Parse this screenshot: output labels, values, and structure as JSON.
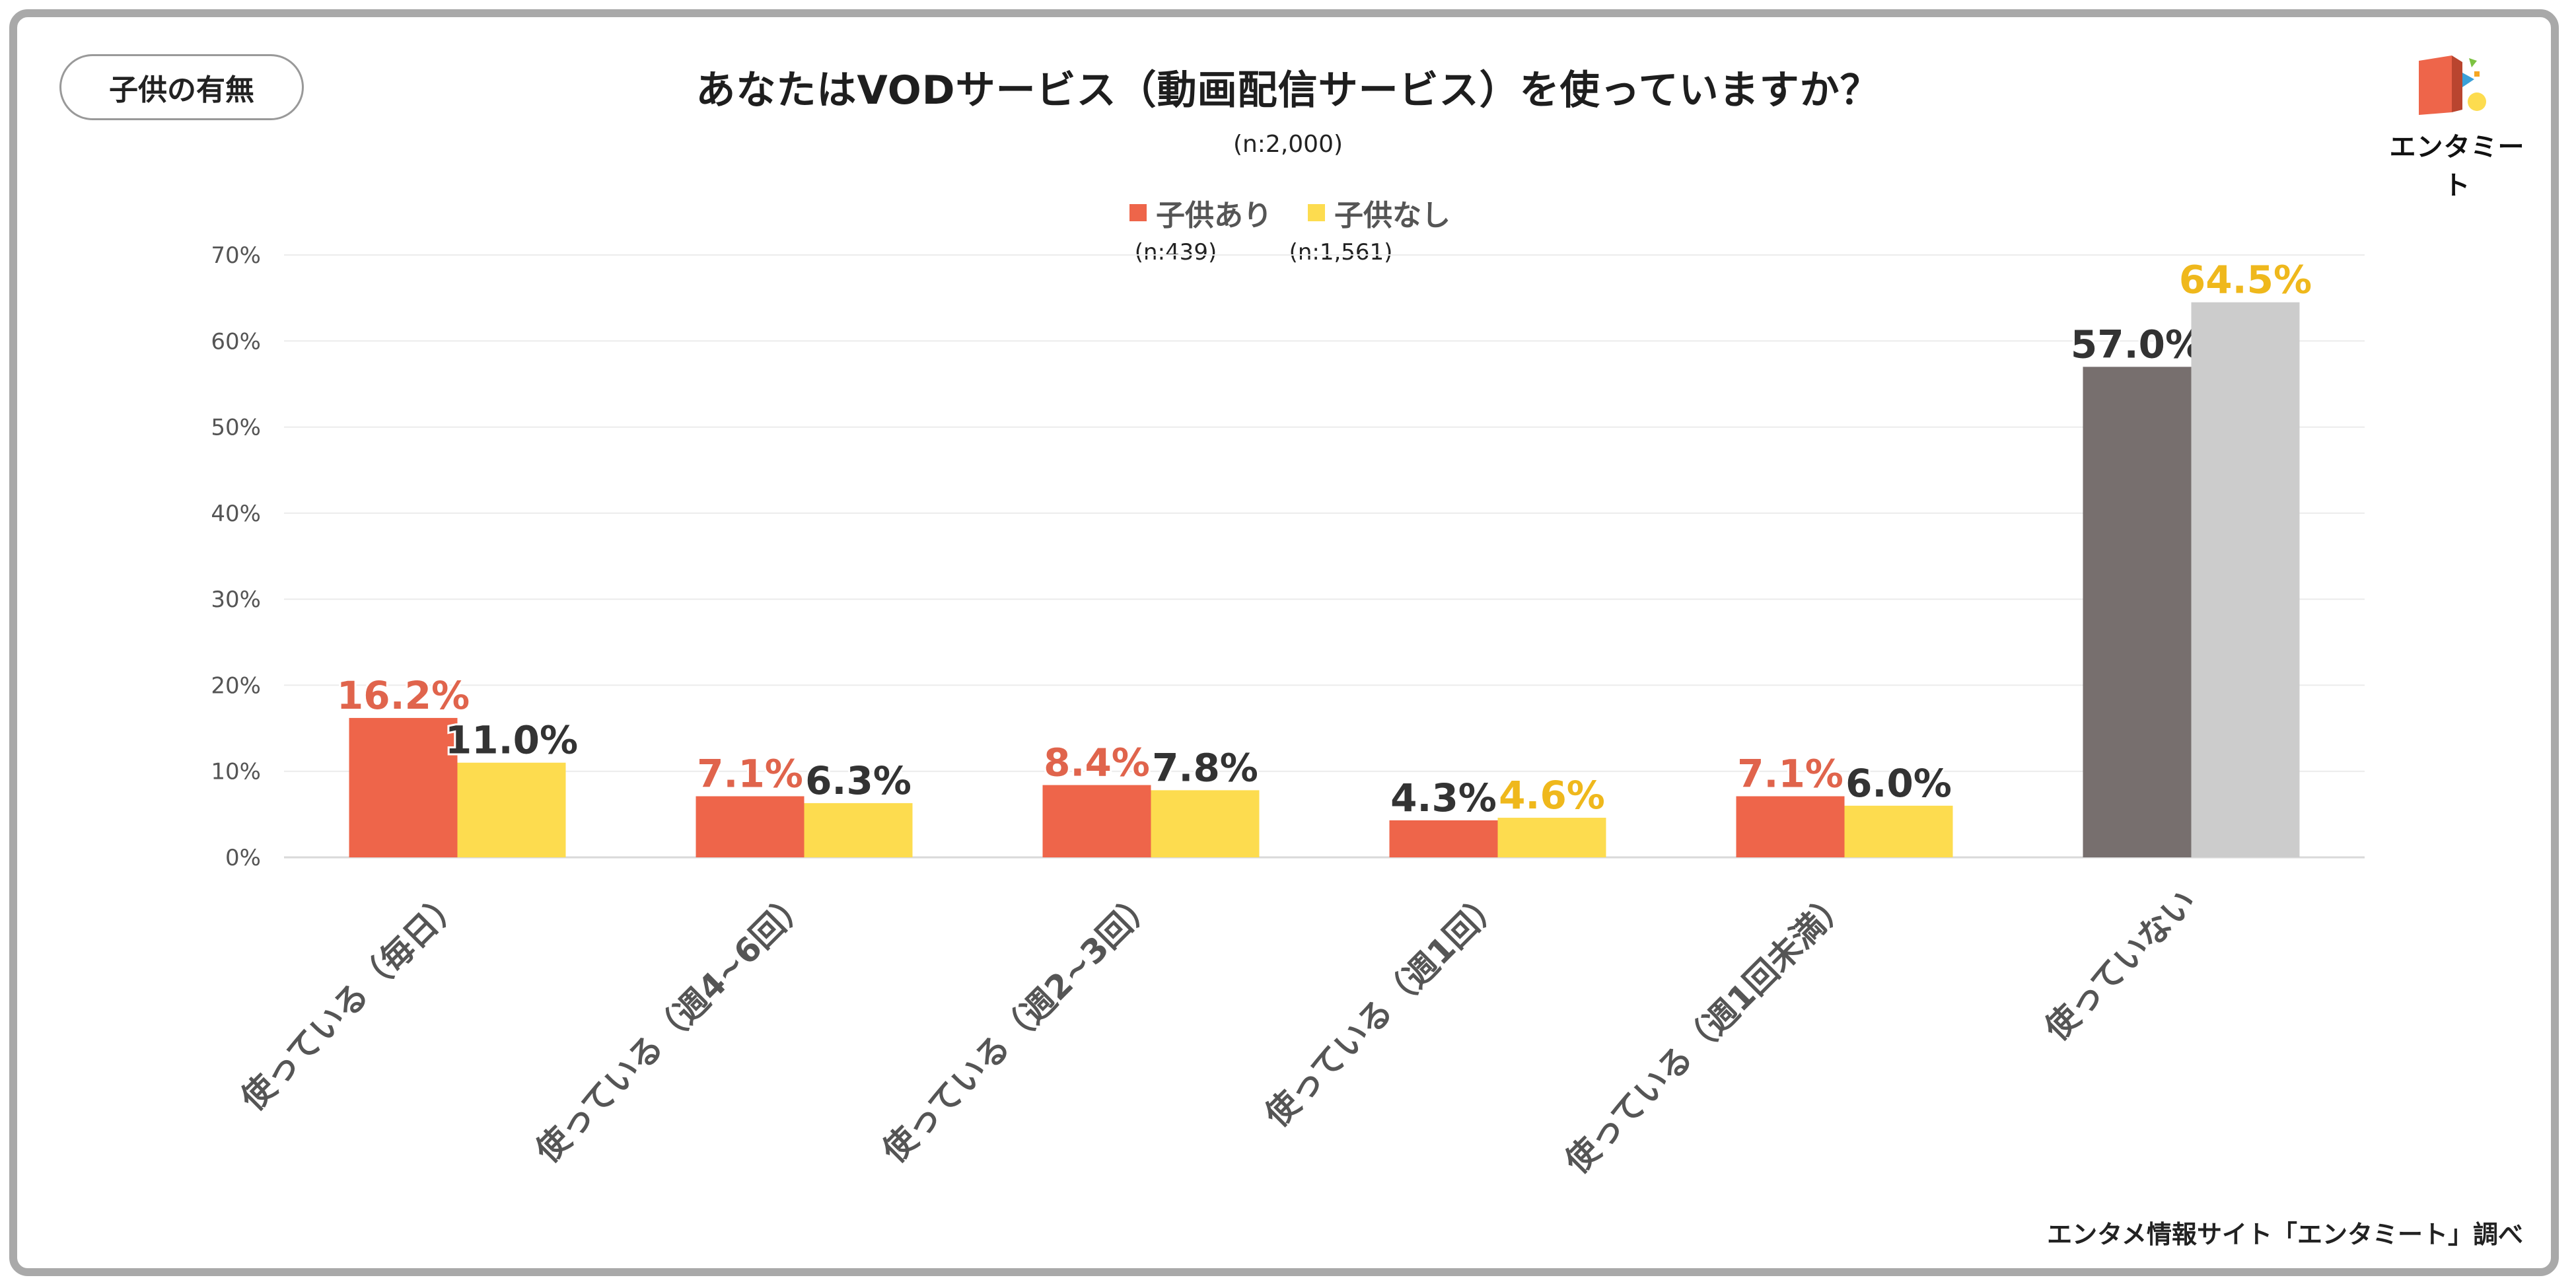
{
  "tag": "子供の有無",
  "title": "あなたはVODサービス（動画配信サービス）を使っていますか？",
  "subtitle": "(n:2,000)",
  "logo_text": "エンタミート",
  "source": "エンタメ情報サイト「エンタミート」調べ",
  "legend": [
    {
      "name": "子供あり",
      "n": "(n:439)",
      "color": "#ee654a"
    },
    {
      "name": "子供なし",
      "n": "(n:1,561)",
      "color": "#fddc4f"
    }
  ],
  "chart_data": {
    "type": "bar",
    "title": "あなたはVODサービス（動画配信サービス）を使っていますか？",
    "categories": [
      "使っている（毎日）",
      "使っている（週4~6回）",
      "使っている（週2~3回）",
      "使っている（週1回）",
      "使っている（週1回未満）",
      "使っていない"
    ],
    "series": [
      {
        "name": "子供あり",
        "values": [
          16.2,
          7.1,
          8.4,
          4.3,
          7.1,
          57.0
        ],
        "labels": [
          "16.2%",
          "7.1%",
          "8.4%",
          "4.3%",
          "7.1%",
          "57.0%"
        ]
      },
      {
        "name": "子供なし",
        "values": [
          11.0,
          6.3,
          7.8,
          4.6,
          6.0,
          64.5
        ],
        "labels": [
          "11.0%",
          "6.3%",
          "7.8%",
          "4.6%",
          "6.0%",
          "64.5%"
        ]
      }
    ],
    "bar_colors": [
      [
        "#ee654a",
        "#ee654a",
        "#ee654a",
        "#ee654a",
        "#ee654a",
        "#776f6e"
      ],
      [
        "#fddc4f",
        "#fddc4f",
        "#fddc4f",
        "#fddc4f",
        "#fddc4f",
        "#cccccc"
      ]
    ],
    "label_colors": [
      [
        "#e0644c",
        "#e0644c",
        "#e0644c",
        "#333333",
        "#e0644c",
        "#333333"
      ],
      [
        "#333333",
        "#333333",
        "#333333",
        "#efb81c",
        "#333333",
        "#efb81c"
      ]
    ],
    "yticks": [
      "0%",
      "10%",
      "20%",
      "30%",
      "40%",
      "50%",
      "60%",
      "70%"
    ],
    "ylim": [
      0,
      70
    ],
    "grid": true,
    "legend_position": "top-center"
  }
}
